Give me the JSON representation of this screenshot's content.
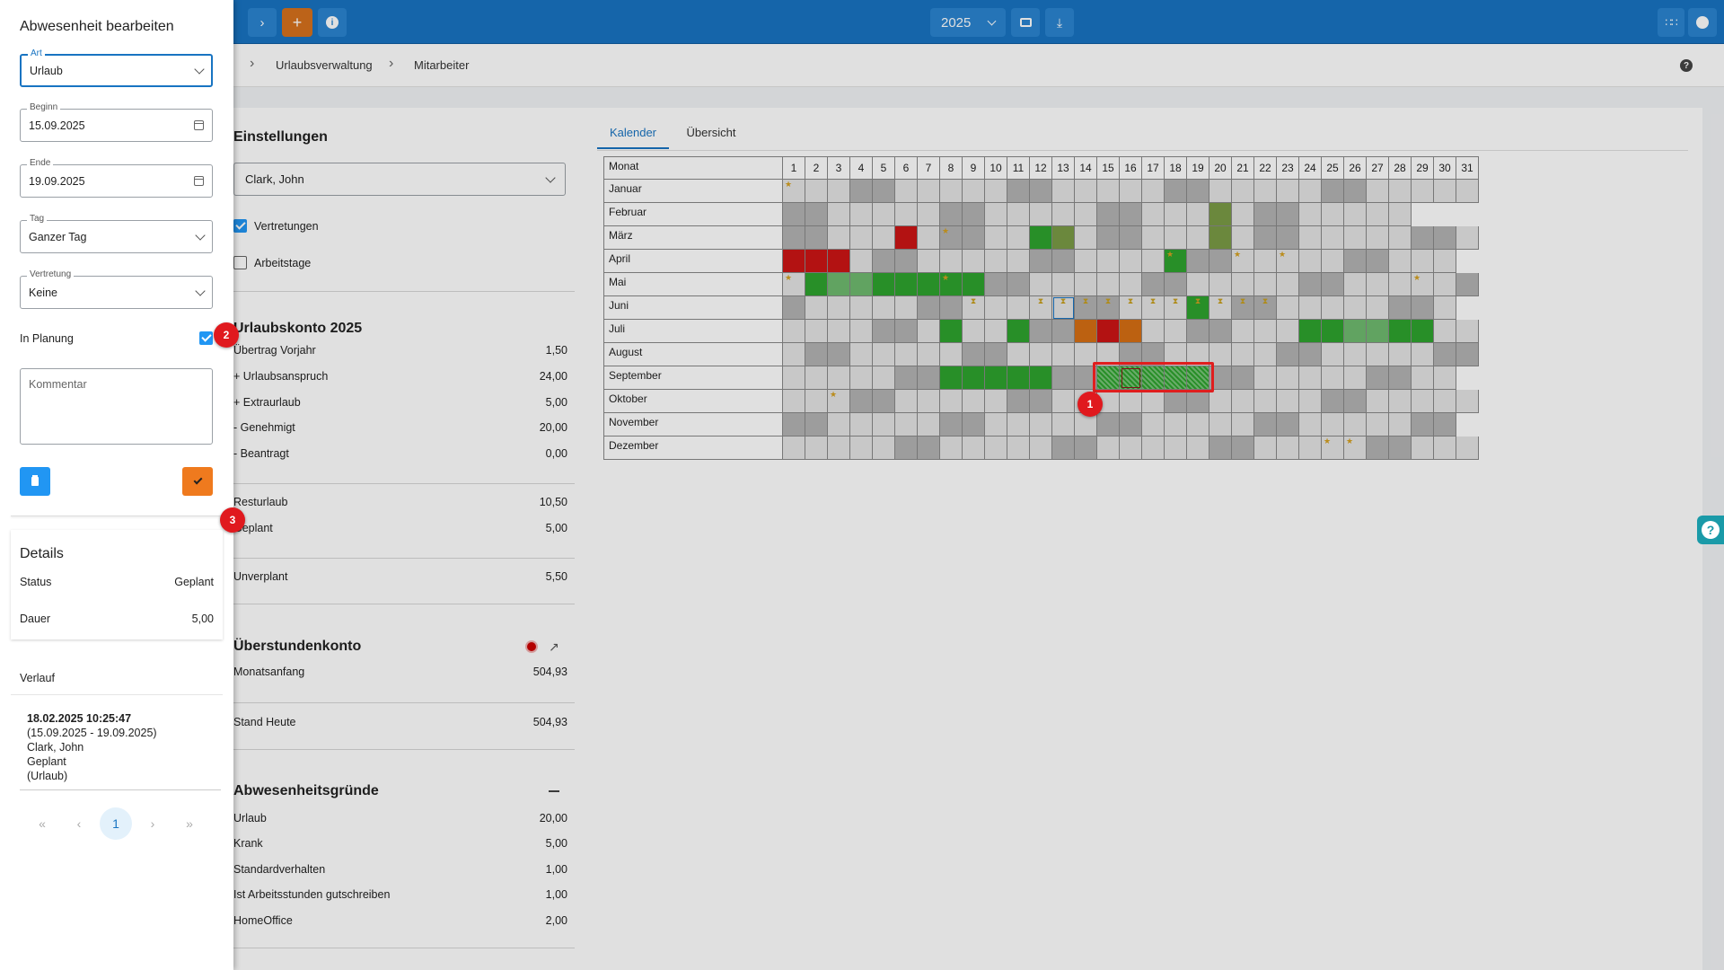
{
  "topbar": {
    "year": "2025",
    "colors": {
      "bar": "#1874c2",
      "add": "#d7711d"
    }
  },
  "breadcrumb": [
    "Urlaubsverwaltung",
    "Mitarbeiter"
  ],
  "help_icon": "help-icon",
  "settings": {
    "title": "Einstellungen",
    "employee": "Clark, John",
    "vertretungen_label": "Vertretungen",
    "vertretungen_checked": true,
    "arbeitstage_label": "Arbeitstage",
    "arbeitstage_checked": false
  },
  "urlaubskonto": {
    "title": "Urlaubskonto 2025",
    "rows": [
      {
        "label": "Übertrag Vorjahr",
        "value": "1,50"
      },
      {
        "label": "+ Urlaubsanspruch",
        "value": "24,00"
      },
      {
        "label": "+ Extraurlaub",
        "value": "5,00"
      },
      {
        "label": "- Genehmigt",
        "value": "20,00"
      },
      {
        "label": "- Beantragt",
        "value": "0,00"
      }
    ],
    "rest": {
      "label": "Resturlaub",
      "value": "10,50"
    },
    "geplant": {
      "label": "Geplant",
      "value": "5,00"
    },
    "unverplant": {
      "label": "Unverplant",
      "value": "5,50"
    }
  },
  "ueberstunden": {
    "title": "Überstundenkonto",
    "rows": [
      {
        "label": "Monatsanfang",
        "value": "504,93"
      },
      {
        "label": "Stand Heute",
        "value": "504,93"
      }
    ]
  },
  "gruende": {
    "title": "Abwesenheitsgründe",
    "rows": [
      {
        "label": "Urlaub",
        "value": "20,00"
      },
      {
        "label": "Krank",
        "value": "5,00"
      },
      {
        "label": "Standardverhalten",
        "value": "1,00"
      },
      {
        "label": "Ist Arbeitsstunden gutschreiben",
        "value": "1,00"
      },
      {
        "label": "HomeOffice",
        "value": "2,00"
      }
    ]
  },
  "tabs": [
    {
      "label": "Kalender",
      "active": true
    },
    {
      "label": "Übersicht",
      "active": false
    }
  ],
  "calendar": {
    "header": "Monat",
    "months": [
      "Januar",
      "Februar",
      "März",
      "April",
      "Mai",
      "Juni",
      "Juli",
      "August",
      "September",
      "Oktober",
      "November",
      "Dezember"
    ],
    "colors": {
      "empty": "#e4e4e4",
      "weekend": "#b3b3b3",
      "green": "#2ea32e",
      "olive": "#7a9b46",
      "red": "#cc1515",
      "orange": "#d66f14",
      "pale": "#6fba6f"
    },
    "cells": {
      "1": {
        "w": [
          4,
          5,
          11,
          12,
          18,
          19,
          25,
          26
        ],
        "star": [
          1
        ]
      },
      "2": {
        "w": [
          1,
          2,
          8,
          9,
          15,
          16,
          22,
          23
        ],
        "olive": [
          20
        ]
      },
      "3": {
        "w": [
          1,
          2,
          8,
          9,
          15,
          16,
          22,
          23,
          29,
          30
        ],
        "red": [
          6
        ],
        "green": [
          12
        ],
        "olive": [
          13,
          20
        ],
        "star": [
          8
        ]
      },
      "4": {
        "w": [
          5,
          6,
          12,
          13,
          19,
          20,
          26,
          27
        ],
        "red": [
          1,
          2,
          3
        ],
        "green": [
          18
        ],
        "star": [
          18,
          21,
          23
        ]
      },
      "5": {
        "w": [
          3,
          4,
          10,
          11,
          17,
          18,
          24,
          25,
          31
        ],
        "green": [
          2,
          5,
          6,
          7,
          8,
          9
        ],
        "pale": [
          3,
          4
        ],
        "star": [
          1,
          8,
          29
        ]
      },
      "6": {
        "w": [
          1,
          7,
          8,
          14,
          15,
          21,
          22,
          28,
          29
        ],
        "green": [
          19
        ],
        "outline": [
          13
        ],
        "hourglass": [
          9,
          12,
          13,
          14,
          15,
          16,
          17,
          18,
          19,
          20,
          21,
          22
        ]
      },
      "7": {
        "w": [
          5,
          6,
          12,
          13,
          19,
          20,
          26,
          27
        ],
        "green": [
          8,
          11,
          24,
          25,
          28,
          29
        ],
        "orange": [
          14,
          16
        ],
        "red": [
          15
        ],
        "pale": [
          26,
          27
        ]
      },
      "8": {
        "w": [
          2,
          3,
          9,
          10,
          16,
          17,
          23,
          24,
          30,
          31
        ]
      },
      "9": {
        "w": [
          6,
          7,
          13,
          14,
          20,
          21,
          27,
          28
        ],
        "green": [
          8,
          9,
          10,
          11,
          12
        ],
        "hatch": [
          15,
          16,
          17,
          18,
          19
        ],
        "selected": [
          16
        ]
      },
      "10": {
        "w": [
          4,
          5,
          11,
          12,
          18,
          19,
          25,
          26
        ],
        "star": [
          3
        ]
      },
      "11": {
        "w": [
          1,
          2,
          8,
          9,
          15,
          16,
          22,
          23,
          29,
          30
        ]
      },
      "12": {
        "w": [
          6,
          7,
          13,
          14,
          20,
          21,
          27,
          28
        ],
        "star": [
          25,
          26
        ]
      }
    }
  },
  "drawer": {
    "title": "Abwesenheit bearbeiten",
    "art_label": "Art",
    "art": "Urlaub",
    "beginn_label": "Beginn",
    "beginn": "15.09.2025",
    "ende_label": "Ende",
    "ende": "19.09.2025",
    "tag_label": "Tag",
    "tag": "Ganzer Tag",
    "vertretung_label": "Vertretung",
    "vertretung": "Keine",
    "planung_label": "In Planung",
    "planung_checked": true,
    "kommentar_placeholder": "Kommentar"
  },
  "details": {
    "title": "Details",
    "status_label": "Status",
    "status": "Geplant",
    "dauer_label": "Dauer",
    "dauer": "5,00"
  },
  "verlauf": {
    "title": "Verlauf",
    "entry": {
      "date": "18.02.2025 10:25:47",
      "range": "(15.09.2025 - 19.09.2025)",
      "name": "Clark, John",
      "state": "Geplant",
      "type": "(Urlaub)"
    }
  },
  "pagination": {
    "current": "1"
  },
  "badges": [
    "1",
    "2",
    "3"
  ]
}
